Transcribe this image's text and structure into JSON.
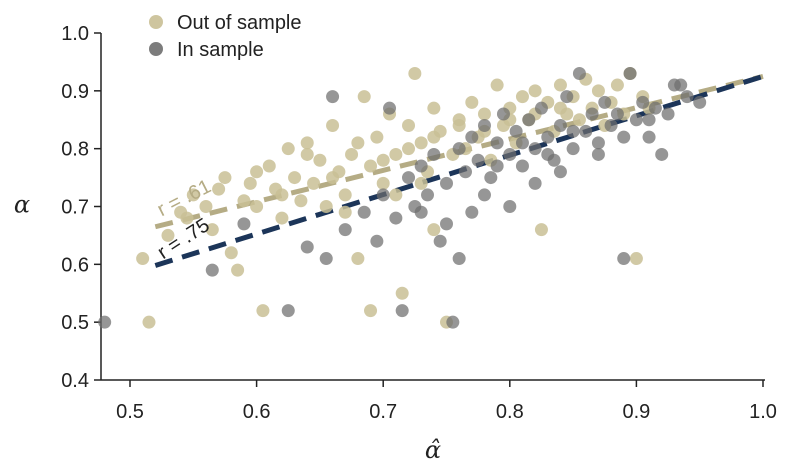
{
  "chart_data": {
    "type": "scatter",
    "title": "",
    "xlabel": "α̂",
    "ylabel": "α",
    "xlim": [
      0.48,
      1.0
    ],
    "ylim": [
      0.4,
      1.0
    ],
    "x_ticks": [
      0.5,
      0.6,
      0.7,
      0.8,
      0.9,
      1.0
    ],
    "x_tick_labels": [
      "0.5",
      "0.6",
      "0.7",
      "0.8",
      "0.9",
      "1.0"
    ],
    "y_ticks": [
      0.4,
      0.5,
      0.6,
      0.7,
      0.8,
      0.9,
      1.0
    ],
    "y_tick_labels": [
      "0.4",
      "0.5",
      "0.6",
      "0.7",
      "0.8",
      "0.9",
      "1.0"
    ],
    "grid": false,
    "legend_position": "top-left",
    "series": [
      {
        "name": "Out of sample",
        "color": "#c9bf95",
        "marker": "circle",
        "points": [
          [
            0.51,
            0.61
          ],
          [
            0.515,
            0.5
          ],
          [
            0.53,
            0.65
          ],
          [
            0.54,
            0.69
          ],
          [
            0.545,
            0.68
          ],
          [
            0.55,
            0.72
          ],
          [
            0.56,
            0.7
          ],
          [
            0.565,
            0.66
          ],
          [
            0.57,
            0.73
          ],
          [
            0.575,
            0.75
          ],
          [
            0.58,
            0.62
          ],
          [
            0.585,
            0.59
          ],
          [
            0.59,
            0.71
          ],
          [
            0.595,
            0.74
          ],
          [
            0.6,
            0.7
          ],
          [
            0.605,
            0.52
          ],
          [
            0.61,
            0.77
          ],
          [
            0.615,
            0.73
          ],
          [
            0.62,
            0.68
          ],
          [
            0.625,
            0.8
          ],
          [
            0.63,
            0.75
          ],
          [
            0.635,
            0.71
          ],
          [
            0.64,
            0.81
          ],
          [
            0.645,
            0.74
          ],
          [
            0.65,
            0.78
          ],
          [
            0.655,
            0.7
          ],
          [
            0.66,
            0.84
          ],
          [
            0.665,
            0.76
          ],
          [
            0.67,
            0.72
          ],
          [
            0.675,
            0.79
          ],
          [
            0.68,
            0.61
          ],
          [
            0.685,
            0.89
          ],
          [
            0.69,
            0.77
          ],
          [
            0.695,
            0.82
          ],
          [
            0.7,
            0.74
          ],
          [
            0.705,
            0.86
          ],
          [
            0.71,
            0.79
          ],
          [
            0.715,
            0.55
          ],
          [
            0.72,
            0.84
          ],
          [
            0.725,
            0.93
          ],
          [
            0.73,
            0.81
          ],
          [
            0.735,
            0.76
          ],
          [
            0.74,
            0.87
          ],
          [
            0.745,
            0.83
          ],
          [
            0.75,
            0.5
          ],
          [
            0.755,
            0.79
          ],
          [
            0.76,
            0.85
          ],
          [
            0.765,
            0.8
          ],
          [
            0.77,
            0.88
          ],
          [
            0.775,
            0.82
          ],
          [
            0.78,
            0.86
          ],
          [
            0.785,
            0.78
          ],
          [
            0.79,
            0.91
          ],
          [
            0.795,
            0.84
          ],
          [
            0.8,
            0.87
          ],
          [
            0.805,
            0.81
          ],
          [
            0.81,
            0.89
          ],
          [
            0.815,
            0.85
          ],
          [
            0.82,
            0.9
          ],
          [
            0.825,
            0.66
          ],
          [
            0.83,
            0.88
          ],
          [
            0.835,
            0.83
          ],
          [
            0.84,
            0.91
          ],
          [
            0.845,
            0.86
          ],
          [
            0.85,
            0.89
          ],
          [
            0.855,
            0.85
          ],
          [
            0.86,
            0.92
          ],
          [
            0.865,
            0.87
          ],
          [
            0.87,
            0.9
          ],
          [
            0.875,
            0.84
          ],
          [
            0.88,
            0.88
          ],
          [
            0.885,
            0.91
          ],
          [
            0.89,
            0.86
          ],
          [
            0.895,
            0.93
          ],
          [
            0.9,
            0.61
          ],
          [
            0.905,
            0.89
          ],
          [
            0.91,
            0.87
          ],
          [
            0.6,
            0.76
          ],
          [
            0.62,
            0.72
          ],
          [
            0.64,
            0.79
          ],
          [
            0.66,
            0.75
          ],
          [
            0.68,
            0.81
          ],
          [
            0.7,
            0.78
          ],
          [
            0.72,
            0.8
          ],
          [
            0.74,
            0.82
          ],
          [
            0.76,
            0.84
          ],
          [
            0.78,
            0.83
          ],
          [
            0.8,
            0.85
          ],
          [
            0.82,
            0.86
          ],
          [
            0.84,
            0.87
          ],
          [
            0.69,
            0.52
          ],
          [
            0.74,
            0.66
          ],
          [
            0.71,
            0.72
          ],
          [
            0.73,
            0.74
          ],
          [
            0.67,
            0.69
          ]
        ]
      },
      {
        "name": "In sample",
        "color": "#6e6e6e",
        "marker": "circle",
        "points": [
          [
            0.48,
            0.5
          ],
          [
            0.565,
            0.59
          ],
          [
            0.59,
            0.67
          ],
          [
            0.625,
            0.52
          ],
          [
            0.64,
            0.63
          ],
          [
            0.655,
            0.61
          ],
          [
            0.66,
            0.89
          ],
          [
            0.67,
            0.66
          ],
          [
            0.685,
            0.69
          ],
          [
            0.695,
            0.64
          ],
          [
            0.7,
            0.72
          ],
          [
            0.705,
            0.87
          ],
          [
            0.71,
            0.68
          ],
          [
            0.715,
            0.52
          ],
          [
            0.72,
            0.75
          ],
          [
            0.725,
            0.7
          ],
          [
            0.73,
            0.77
          ],
          [
            0.735,
            0.72
          ],
          [
            0.74,
            0.79
          ],
          [
            0.745,
            0.64
          ],
          [
            0.75,
            0.74
          ],
          [
            0.755,
            0.5
          ],
          [
            0.76,
            0.8
          ],
          [
            0.765,
            0.76
          ],
          [
            0.77,
            0.82
          ],
          [
            0.775,
            0.78
          ],
          [
            0.78,
            0.84
          ],
          [
            0.785,
            0.75
          ],
          [
            0.79,
            0.81
          ],
          [
            0.795,
            0.86
          ],
          [
            0.8,
            0.79
          ],
          [
            0.805,
            0.83
          ],
          [
            0.81,
            0.77
          ],
          [
            0.815,
            0.85
          ],
          [
            0.82,
            0.8
          ],
          [
            0.825,
            0.87
          ],
          [
            0.83,
            0.82
          ],
          [
            0.835,
            0.78
          ],
          [
            0.84,
            0.84
          ],
          [
            0.845,
            0.89
          ],
          [
            0.85,
            0.8
          ],
          [
            0.855,
            0.93
          ],
          [
            0.86,
            0.83
          ],
          [
            0.865,
            0.86
          ],
          [
            0.87,
            0.81
          ],
          [
            0.875,
            0.88
          ],
          [
            0.88,
            0.84
          ],
          [
            0.885,
            0.86
          ],
          [
            0.89,
            0.61
          ],
          [
            0.895,
            0.93
          ],
          [
            0.9,
            0.85
          ],
          [
            0.905,
            0.88
          ],
          [
            0.91,
            0.82
          ],
          [
            0.915,
            0.87
          ],
          [
            0.92,
            0.79
          ],
          [
            0.925,
            0.86
          ],
          [
            0.93,
            0.91
          ],
          [
            0.935,
            0.91
          ],
          [
            0.94,
            0.89
          ],
          [
            0.95,
            0.88
          ],
          [
            0.76,
            0.61
          ],
          [
            0.78,
            0.72
          ],
          [
            0.8,
            0.7
          ],
          [
            0.82,
            0.74
          ],
          [
            0.84,
            0.76
          ],
          [
            0.77,
            0.69
          ],
          [
            0.79,
            0.77
          ],
          [
            0.81,
            0.81
          ],
          [
            0.83,
            0.79
          ],
          [
            0.85,
            0.83
          ],
          [
            0.75,
            0.67
          ],
          [
            0.73,
            0.69
          ],
          [
            0.87,
            0.79
          ],
          [
            0.89,
            0.82
          ],
          [
            0.91,
            0.85
          ]
        ]
      }
    ],
    "trend_lines": [
      {
        "series": "Out of sample",
        "label": "r = .61",
        "color": "#b5ac85",
        "x": [
          0.52,
          1.0
        ],
        "y": [
          0.665,
          0.925
        ]
      },
      {
        "series": "In sample",
        "label": "r = .75",
        "color": "#1c3559",
        "x": [
          0.52,
          1.0
        ],
        "y": [
          0.598,
          0.925
        ]
      }
    ]
  }
}
